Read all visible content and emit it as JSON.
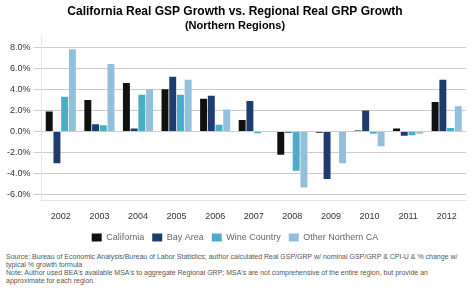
{
  "chart_data": {
    "type": "bar",
    "title": "California Real GSP Growth vs. Regional Real GRP Growth",
    "subtitle": "(Northern Regions)",
    "categories": [
      "2002",
      "2003",
      "2004",
      "2005",
      "2006",
      "2007",
      "2008",
      "2009",
      "2010",
      "2011",
      "2012"
    ],
    "series": [
      {
        "name": "California",
        "color": "#111111",
        "values": [
          1.9,
          3.0,
          4.6,
          4.0,
          3.1,
          1.1,
          -2.2,
          -0.1,
          0.1,
          0.3,
          2.8
        ]
      },
      {
        "name": "Bay Area",
        "color": "#1f3c6e",
        "values": [
          -3.0,
          0.7,
          0.3,
          5.2,
          3.4,
          2.9,
          -0.1,
          -4.5,
          2.0,
          -0.4,
          4.9
        ]
      },
      {
        "name": "Wine Country",
        "color": "#4bacc6",
        "values": [
          3.3,
          0.6,
          3.5,
          3.5,
          0.65,
          -0.15,
          -3.7,
          -0.05,
          -0.2,
          -0.35,
          0.35
        ]
      },
      {
        "name": "Other Northern CA",
        "color": "#92c0da",
        "values": [
          7.8,
          6.4,
          4.0,
          4.9,
          2.1,
          0.0,
          -5.3,
          -3.0,
          -1.4,
          -0.2,
          2.4
        ]
      }
    ],
    "ylim": [
      -6.5,
      9.0
    ],
    "yticks": [
      {
        "value": -6.0,
        "label": "-6.0%"
      },
      {
        "value": -4.0,
        "label": "-4.0%"
      },
      {
        "value": -2.0,
        "label": "-2.0%"
      },
      {
        "value": 0.0,
        "label": "0.0%"
      },
      {
        "value": 2.0,
        "label": "2.0%"
      },
      {
        "value": 4.0,
        "label": "4.0%"
      },
      {
        "value": 6.0,
        "label": "6.0%"
      },
      {
        "value": 8.0,
        "label": "8.0%"
      }
    ],
    "grid": true,
    "legend": "bottom",
    "annotations": [
      "Source: Bureau of Economic Analysis/Bureau of Labor Statistics; author calculated Real GSP/GRP w/ nominal GSP/GRP & CPI-U & % change w/ typical % growth formula",
      "Note: Author used BEA's available MSA's to aggregate Regional GRP; MSA's are not comprehensive of the entire region, but provide an approximate for each region."
    ]
  }
}
